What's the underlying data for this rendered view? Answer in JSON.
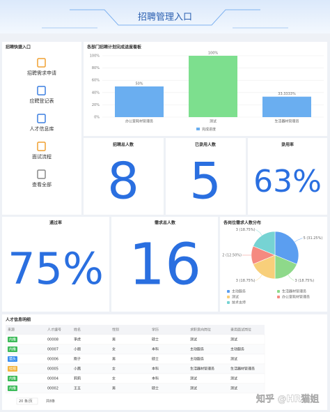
{
  "header": {
    "title": "招聘管理入口"
  },
  "quick_entry": {
    "title": "招聘快捷入口",
    "items": [
      "招聘需求申请",
      "应聘登记表",
      "人才信息库",
      "面试流程",
      "查看全部"
    ]
  },
  "bar_chart": {
    "type": "bar",
    "title": "各部门招聘计划完成进度看板",
    "categories": [
      "办公室耗材管理员",
      "测试",
      "生活器材管理员"
    ],
    "values": [
      50,
      100,
      33.3333
    ],
    "value_labels": [
      "50%",
      "100%",
      "33.3333%"
    ],
    "colors": [
      "#6aaef0",
      "#7ddf8e",
      "#6aaef0"
    ],
    "series_name": "完成进度",
    "legend_color": "#6aaef0",
    "ylim": [
      0,
      100
    ],
    "yticks": [
      {
        "value": 0,
        "label": "0%"
      },
      {
        "value": 20,
        "label": "20%"
      },
      {
        "value": 40,
        "label": "40%"
      },
      {
        "value": 60,
        "label": "60%"
      },
      {
        "value": 80,
        "label": "80%"
      },
      {
        "value": 100,
        "label": "100%"
      }
    ],
    "grid": true
  },
  "kpis": [
    {
      "title": "招聘总人数",
      "value": 8
    },
    {
      "title": "已录用人数",
      "value": 5
    },
    {
      "title": "录用率",
      "value": "63%"
    },
    {
      "title": "通过率",
      "value": "75%"
    },
    {
      "title": "需求总人数",
      "value": 16
    }
  ],
  "pie_chart": {
    "type": "pie",
    "title": "各岗位需求人数分布",
    "categories": [
      "主动服务",
      "生活器材管理员",
      "测试",
      "办公室耗材管理员",
      "技术支持"
    ],
    "values": [
      5,
      3,
      3,
      2,
      3
    ],
    "value_labels": [
      "5 (31.25%)",
      "3 (18.75%)",
      "3 (18.75%)",
      "2 (12.50%)",
      "3 (18.75%)"
    ],
    "colors": [
      "#5b9ef0",
      "#8ed98a",
      "#f8cf7a",
      "#f58a80",
      "#76d3d3"
    ]
  },
  "table": {
    "title": "人才信息明细",
    "columns": [
      "来源",
      "人才编号",
      "姓名",
      "性别",
      "学历",
      "求职意向岗位",
      "录用面试岗位"
    ],
    "rows": [
      [
        "内推",
        "00008",
        "李虎",
        "男",
        "硕士",
        "测试",
        "测试"
      ],
      [
        "内推",
        "00007",
        "小丽",
        "女",
        "本科",
        "主动服务",
        "主动服务"
      ],
      [
        "猎头",
        "00006",
        "刚子",
        "男",
        "硕士",
        "主动服务",
        "测试"
      ],
      [
        "社招",
        "00005",
        "小茜",
        "女",
        "本科",
        "生活器材管理员",
        "生活器材管理员"
      ],
      [
        "内推",
        "00004",
        "莉莉",
        "女",
        "本科",
        "测试",
        "测试"
      ],
      [
        "内推",
        "00002",
        "王五",
        "男",
        "硕士",
        "测试",
        "测试"
      ]
    ],
    "source_colors": [
      "#3dbb5a",
      "#3dbb5a",
      "#3b8ff0",
      "#f4b53f",
      "#3dbb5a",
      "#3dbb5a"
    ]
  },
  "pagination": {
    "page_size": "20 条/页",
    "total": "共8条"
  },
  "watermark": "知乎 @HR猫姐"
}
